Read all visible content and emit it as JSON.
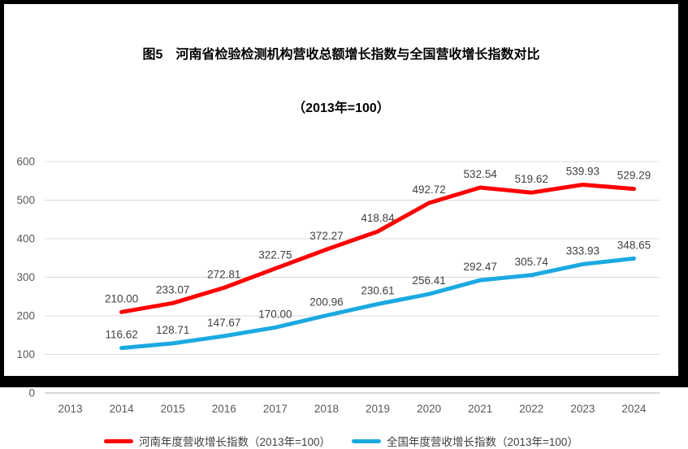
{
  "window": {
    "background": "#FFFFFF",
    "frame_color": "#000000"
  },
  "title": {
    "line1": "图5　河南省检验检测机构营收总额增长指数与全国营收增长指数对比",
    "line2": "（2013年=100）"
  },
  "chart_data": {
    "type": "line",
    "categories": [
      "2013",
      "2014",
      "2015",
      "2016",
      "2017",
      "2018",
      "2019",
      "2020",
      "2021",
      "2022",
      "2023",
      "2024"
    ],
    "series": [
      {
        "name": "河南年度营收增长指数（2013年=100）",
        "color": "#FE0000",
        "values": [
          null,
          210.0,
          233.07,
          272.81,
          322.75,
          372.27,
          418.84,
          492.72,
          532.54,
          519.62,
          539.93,
          529.29
        ]
      },
      {
        "name": "全国年度营收增长指数（2013年=100）",
        "color": "#1BA9E2",
        "values": [
          null,
          116.62,
          128.71,
          147.67,
          170.0,
          200.96,
          230.61,
          256.41,
          292.47,
          305.74,
          333.93,
          348.65
        ]
      }
    ],
    "xlabel": "",
    "ylabel": "",
    "ylim": [
      0,
      600
    ],
    "yticks": [
      0,
      100,
      200,
      300,
      400,
      500,
      600
    ],
    "ytick_interval": 100,
    "grid": true,
    "legend_position": "bottom",
    "data_labels": true,
    "data_label_decimals": 2
  },
  "style": {
    "gridline_color": "#D9D9D9",
    "axis_line_color": "#BFBFBF",
    "tick_label_color": "#595959",
    "data_label_color": "#404040",
    "title_color": "#000000",
    "line_width": 5
  }
}
